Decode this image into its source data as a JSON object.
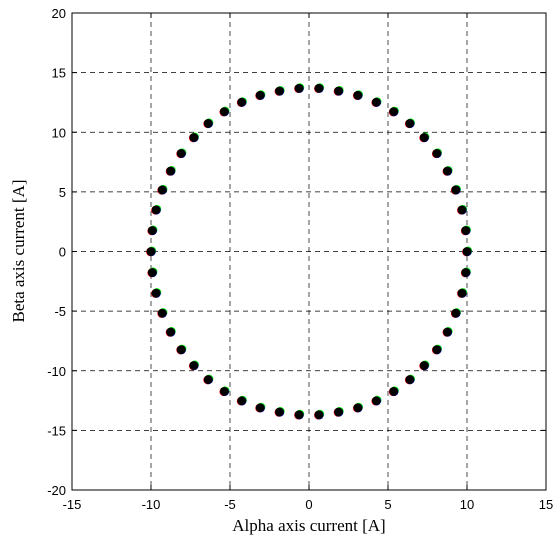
{
  "chart_data": {
    "type": "scatter",
    "title": "",
    "xlabel": "Alpha axis current [A]",
    "ylabel": "Beta axis current [A]",
    "xlim": [
      -15,
      15
    ],
    "ylim": [
      -20,
      20
    ],
    "xticks": [
      -15,
      -10,
      -5,
      0,
      5,
      10,
      15
    ],
    "yticks": [
      -20,
      -15,
      -10,
      -5,
      0,
      5,
      10,
      15,
      20
    ],
    "xtick_labels": [
      "-15",
      "-10",
      "-5",
      "0",
      "5",
      "10",
      "15"
    ],
    "ytick_labels": [
      "-20",
      "-15",
      "-10",
      "-5",
      "0",
      "5",
      "10",
      "15",
      "20"
    ],
    "grid": true,
    "legend": "none",
    "series": [
      {
        "color": "#ffff00",
        "marker": "filled-circle",
        "x": [
          10.0,
          9.92,
          9.68,
          9.29,
          8.76,
          8.09,
          7.29,
          6.38,
          5.36,
          4.26,
          3.09,
          1.87,
          0.63,
          -0.63,
          -1.87,
          -3.09,
          -4.26,
          -5.36,
          -6.38,
          -7.29,
          -8.09,
          -8.76,
          -9.29,
          -9.68,
          -9.92,
          -10.0,
          -9.92,
          -9.68,
          -9.29,
          -8.76,
          -8.09,
          -7.29,
          -6.38,
          -5.36,
          -4.26,
          -3.09,
          -1.87,
          -0.63,
          0.63,
          1.87,
          3.09,
          4.26,
          5.36,
          6.38,
          7.29,
          8.09,
          8.76,
          9.29,
          9.68,
          9.92
        ],
        "y": [
          0.0,
          1.76,
          3.49,
          5.17,
          6.75,
          8.23,
          9.56,
          10.74,
          11.73,
          12.52,
          13.1,
          13.46,
          13.69,
          13.69,
          13.46,
          13.1,
          12.52,
          11.73,
          10.74,
          9.56,
          8.23,
          6.75,
          5.17,
          3.49,
          1.76,
          0.0,
          -1.76,
          -3.49,
          -5.17,
          -6.75,
          -8.23,
          -9.56,
          -10.74,
          -11.73,
          -12.52,
          -13.1,
          -13.46,
          -13.69,
          -13.69,
          -13.46,
          -13.1,
          -12.52,
          -11.73,
          -10.74,
          -9.56,
          -8.23,
          -6.75,
          -5.17,
          -3.49,
          -1.76
        ]
      },
      {
        "color": "#00ee00",
        "marker": "filled-circle",
        "x": [
          10.05,
          9.97,
          9.73,
          9.34,
          8.81,
          8.14,
          7.34,
          6.43,
          5.41,
          4.31,
          3.14,
          1.92,
          0.68,
          -0.58,
          -1.82,
          -3.04,
          -4.21,
          -5.31,
          -6.33,
          -7.24,
          -8.04,
          -8.71,
          -9.24,
          -9.63,
          -9.87,
          -9.95,
          -9.87,
          -9.63,
          -9.24,
          -8.71,
          -8.04,
          -7.24,
          -6.33,
          -5.31,
          -4.21,
          -3.04,
          -1.82,
          -0.58,
          0.68,
          1.92,
          3.14,
          4.31,
          5.41,
          6.43,
          7.34,
          8.14,
          8.81,
          9.34,
          9.73,
          9.97
        ],
        "y": [
          0.05,
          1.81,
          3.54,
          5.22,
          6.8,
          8.28,
          9.61,
          10.79,
          11.78,
          12.57,
          13.15,
          13.51,
          13.74,
          13.74,
          13.51,
          13.15,
          12.57,
          11.78,
          10.79,
          9.61,
          8.28,
          6.8,
          5.22,
          3.54,
          1.81,
          0.05,
          -1.71,
          -3.44,
          -5.12,
          -6.7,
          -8.18,
          -9.51,
          -10.69,
          -11.68,
          -12.47,
          -13.05,
          -13.41,
          -13.64,
          -13.64,
          -13.41,
          -13.05,
          -12.47,
          -11.68,
          -10.69,
          -9.51,
          -8.18,
          -6.7,
          -5.12,
          -3.44,
          -1.71
        ]
      },
      {
        "color": "#ff0000",
        "marker": "filled-circle",
        "x": [
          9.97,
          9.89,
          9.65,
          9.26,
          8.73,
          8.06,
          7.26,
          6.35,
          5.33,
          4.23,
          3.06,
          1.84,
          0.6,
          -0.66,
          -1.9,
          -3.12,
          -4.29,
          -5.39,
          -6.41,
          -7.32,
          -8.12,
          -8.79,
          -9.32,
          -9.71,
          -9.95,
          -10.03,
          -9.95,
          -9.71,
          -9.32,
          -8.79,
          -8.12,
          -7.32,
          -6.41,
          -5.39,
          -4.29,
          -3.12,
          -1.9,
          -0.66,
          0.6,
          1.84,
          3.06,
          4.23,
          5.33,
          6.35,
          7.26,
          8.06,
          8.73,
          9.26,
          9.65,
          9.89
        ],
        "y": [
          -0.03,
          1.73,
          3.46,
          5.14,
          6.72,
          8.2,
          9.53,
          10.71,
          11.7,
          12.49,
          13.07,
          13.43,
          13.66,
          13.66,
          13.43,
          13.07,
          12.49,
          11.7,
          10.71,
          9.53,
          8.2,
          6.72,
          5.14,
          3.46,
          1.73,
          -0.03,
          -1.79,
          -3.52,
          -5.2,
          -6.78,
          -8.26,
          -9.59,
          -10.77,
          -11.76,
          -12.55,
          -13.13,
          -13.49,
          -13.72,
          -13.72,
          -13.49,
          -13.13,
          -12.55,
          -11.76,
          -10.77,
          -9.59,
          -8.26,
          -6.78,
          -5.2,
          -3.52,
          -1.79
        ]
      },
      {
        "color": "#0000cc",
        "marker": "filled-circle",
        "x": [
          10.02,
          9.94,
          9.7,
          9.31,
          8.78,
          8.11,
          7.31,
          6.4,
          5.38,
          4.28,
          3.11,
          1.89,
          0.65,
          -0.61,
          -1.85,
          -3.07,
          -4.24,
          -5.34,
          -6.36,
          -7.27,
          -8.07,
          -8.74,
          -9.27,
          -9.66,
          -9.9,
          -9.98,
          -9.9,
          -9.66,
          -9.27,
          -8.74,
          -8.07,
          -7.27,
          -6.36,
          -5.34,
          -4.24,
          -3.07,
          -1.85,
          -0.61,
          0.65,
          1.89,
          3.11,
          4.28,
          5.38,
          6.4,
          7.31,
          8.11,
          8.78,
          9.31,
          9.7,
          9.94
        ],
        "y": [
          -0.02,
          1.74,
          3.47,
          5.15,
          6.73,
          8.21,
          9.54,
          10.72,
          11.71,
          12.5,
          13.08,
          13.44,
          13.67,
          13.67,
          13.44,
          13.08,
          12.5,
          11.71,
          10.72,
          9.54,
          8.21,
          6.73,
          5.15,
          3.47,
          1.74,
          -0.02,
          -1.78,
          -3.51,
          -5.19,
          -6.77,
          -8.25,
          -9.58,
          -10.76,
          -11.75,
          -12.54,
          -13.12,
          -13.48,
          -13.71,
          -13.71,
          -13.48,
          -13.12,
          -12.54,
          -11.75,
          -10.76,
          -9.58,
          -8.25,
          -6.77,
          -5.19,
          -3.51,
          -1.78
        ]
      },
      {
        "color": "#000000",
        "marker": "filled-circle",
        "x": [
          10.0,
          9.92,
          9.68,
          9.29,
          8.76,
          8.09,
          7.29,
          6.38,
          5.36,
          4.26,
          3.09,
          1.87,
          0.63,
          -0.63,
          -1.87,
          -3.09,
          -4.26,
          -5.36,
          -6.38,
          -7.29,
          -8.09,
          -8.76,
          -9.29,
          -9.68,
          -9.92,
          -10.0,
          -9.92,
          -9.68,
          -9.29,
          -8.76,
          -8.09,
          -7.29,
          -6.38,
          -5.36,
          -4.26,
          -3.09,
          -1.87,
          -0.63,
          0.63,
          1.87,
          3.09,
          4.26,
          5.36,
          6.38,
          7.29,
          8.09,
          8.76,
          9.29,
          9.68,
          9.92
        ],
        "y": [
          0.0,
          1.76,
          3.49,
          5.17,
          6.75,
          8.23,
          9.56,
          10.74,
          11.73,
          12.52,
          13.1,
          13.46,
          13.69,
          13.69,
          13.46,
          13.1,
          12.52,
          11.73,
          10.74,
          9.56,
          8.23,
          6.75,
          5.17,
          3.49,
          1.76,
          0.0,
          -1.76,
          -3.49,
          -5.17,
          -6.75,
          -8.23,
          -9.56,
          -10.74,
          -11.73,
          -12.52,
          -13.1,
          -13.46,
          -13.69,
          -13.69,
          -13.46,
          -13.1,
          -12.52,
          -11.73,
          -10.74,
          -9.56,
          -8.23,
          -6.75,
          -5.17,
          -3.49,
          -1.76
        ]
      }
    ]
  }
}
